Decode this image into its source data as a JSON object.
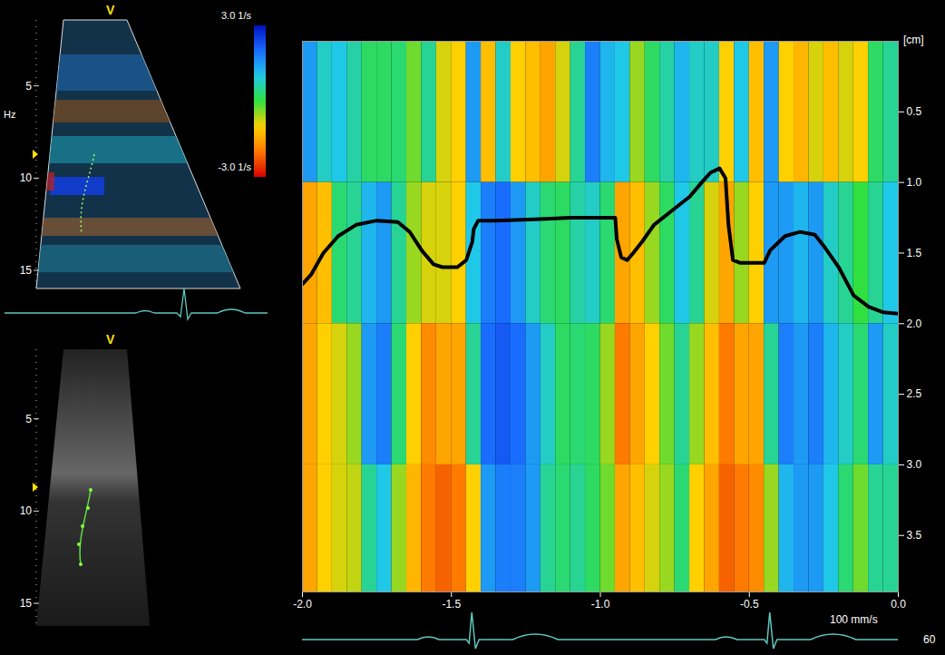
{
  "chart_data": {
    "type": "heatmap",
    "y_label": "[cm]",
    "annotations": [
      "100 mm/s",
      "60"
    ],
    "xlim": [
      -2,
      0
    ],
    "xticks": [
      {
        "value": -2,
        "label": "-2.0"
      },
      -1.5,
      {
        "value": -1,
        "label": "-1.0"
      },
      -0.5,
      {
        "value": 0,
        "label": "0.0"
      }
    ],
    "ylim": [
      0,
      3.9
    ],
    "yticks": [
      0.5,
      {
        "value": 1,
        "label": "1.0"
      },
      1.5,
      {
        "value": 2,
        "label": "2.0"
      },
      2.5,
      {
        "value": 3,
        "label": "3.0"
      },
      3.5
    ],
    "cells": {
      "x_bins": [
        -2,
        -1.95,
        -1.9,
        -1.85,
        -1.8,
        -1.75,
        -1.7,
        -1.65,
        -1.6,
        -1.55,
        -1.5,
        -1.45,
        -1.4,
        -1.35,
        -1.3,
        -1.25,
        -1.2,
        -1.15,
        -1.1,
        -1.05,
        -1,
        -0.95,
        -0.9,
        -0.85,
        -0.8,
        -0.75,
        -0.7,
        -0.65,
        -0.6,
        -0.55,
        -0.5,
        -0.45,
        -0.4,
        -0.35,
        -0.3,
        -0.25,
        -0.2,
        -0.15,
        -0.1,
        -0.05,
        0
      ],
      "y_bins": [
        0,
        1,
        2,
        3,
        3.9
      ],
      "values": [
        [
          1.5,
          -1.5,
          -1.5,
          -1.5
        ],
        [
          0.8,
          -1.2,
          -1.0,
          -1.0
        ],
        [
          1.0,
          0.3,
          -0.8,
          -0.8
        ],
        [
          0.6,
          0.5,
          -0.5,
          -0.7
        ],
        [
          0.2,
          1.2,
          1.5,
          0.5
        ],
        [
          0.2,
          1.5,
          1.8,
          1.0
        ],
        [
          0.3,
          0.5,
          0.3,
          -0.5
        ],
        [
          -0.3,
          -0.5,
          -1.0,
          -1.3
        ],
        [
          0.5,
          -0.8,
          -1.8,
          -2.0
        ],
        [
          -0.8,
          -0.8,
          -1.5,
          -2.2
        ],
        [
          -1.0,
          -1.0,
          -1.5,
          -2.0
        ],
        [
          1.5,
          1.0,
          0.5,
          -1.0
        ],
        [
          -1.2,
          1.8,
          2.0,
          1.5
        ],
        [
          0.8,
          2.0,
          2.2,
          1.8
        ],
        [
          -1.0,
          1.5,
          2.0,
          1.8
        ],
        [
          -1.2,
          0.8,
          1.5,
          1.5
        ],
        [
          -1.5,
          0.3,
          0.8,
          0.5
        ],
        [
          -0.8,
          0.2,
          0.2,
          0.3
        ],
        [
          0.5,
          0.6,
          0.3,
          0.5
        ],
        [
          1.8,
          0.8,
          0.2,
          0.2
        ],
        [
          1.2,
          0.3,
          -0.5,
          -0.3
        ],
        [
          1.0,
          -1.5,
          -2.0,
          -1.5
        ],
        [
          -0.5,
          -1.2,
          -1.5,
          -1.2
        ],
        [
          0.2,
          -0.5,
          -1.0,
          -0.8
        ],
        [
          0.6,
          0.2,
          -0.3,
          -0.5
        ],
        [
          1.2,
          1.0,
          0.5,
          0.3
        ],
        [
          0.8,
          0.5,
          -0.5,
          -1.0
        ],
        [
          0.8,
          -0.8,
          -1.2,
          -1.5
        ],
        [
          -1.0,
          -1.5,
          -2.0,
          -2.2
        ],
        [
          1.0,
          -0.5,
          -1.5,
          -2.0
        ],
        [
          -1.2,
          -1.0,
          -1.5,
          -1.8
        ],
        [
          1.5,
          1.5,
          0.5,
          -0.5
        ],
        [
          -1.0,
          1.5,
          1.8,
          1.2
        ],
        [
          -1.3,
          1.2,
          1.5,
          1.5
        ],
        [
          -0.8,
          1.5,
          1.8,
          1.5
        ],
        [
          -1.2,
          0.8,
          1.2,
          1.0
        ],
        [
          -0.8,
          0.5,
          0.8,
          0.3
        ],
        [
          -1.0,
          0.0,
          0.3,
          -0.3
        ],
        [
          0.2,
          0.5,
          1.5,
          0.5
        ],
        [
          0.5,
          1.0,
          0.8,
          0.5
        ]
      ]
    },
    "colorbar": {
      "range": [
        -3,
        3
      ],
      "ticks": [
        {
          "value": 3,
          "label": "3.0 1/s"
        },
        {
          "value": -3,
          "label": "-3.0 1/s"
        }
      ]
    },
    "series": [
      {
        "color": "#000000",
        "x": [
          -2.0,
          -1.97,
          -1.93,
          -1.88,
          -1.82,
          -1.75,
          -1.68,
          -1.64,
          -1.6,
          -1.56,
          -1.53,
          -1.48,
          -1.45,
          -1.43,
          -1.425,
          -1.41,
          -1.35,
          -1.2,
          -1.1,
          -0.95,
          -0.945,
          -0.93,
          -0.91,
          -0.89,
          -0.86,
          -0.82,
          -0.76,
          -0.7,
          -0.66,
          -0.63,
          -0.6,
          -0.58,
          -0.57,
          -0.555,
          -0.53,
          -0.45,
          -0.43,
          -0.4,
          -0.38,
          -0.33,
          -0.28,
          -0.25,
          -0.2,
          -0.15,
          -0.1,
          -0.05,
          0.0
        ],
        "values": [
          1.72,
          1.65,
          1.5,
          1.38,
          1.3,
          1.27,
          1.28,
          1.35,
          1.48,
          1.58,
          1.6,
          1.6,
          1.55,
          1.42,
          1.33,
          1.27,
          1.27,
          1.26,
          1.25,
          1.25,
          1.4,
          1.53,
          1.55,
          1.5,
          1.42,
          1.3,
          1.2,
          1.1,
          1.0,
          0.93,
          0.9,
          0.97,
          1.3,
          1.55,
          1.57,
          1.57,
          1.48,
          1.42,
          1.38,
          1.35,
          1.37,
          1.45,
          1.6,
          1.8,
          1.88,
          1.92,
          1.93
        ]
      }
    ],
    "ecg": {
      "r_peaks": [
        -1.43,
        -0.43
      ]
    }
  },
  "panels": [
    {
      "label": "V",
      "text": "Hz",
      "ticks": [
        5,
        10,
        15
      ]
    },
    {
      "label": "V",
      "ticks": [
        5,
        10,
        15
      ]
    }
  ]
}
